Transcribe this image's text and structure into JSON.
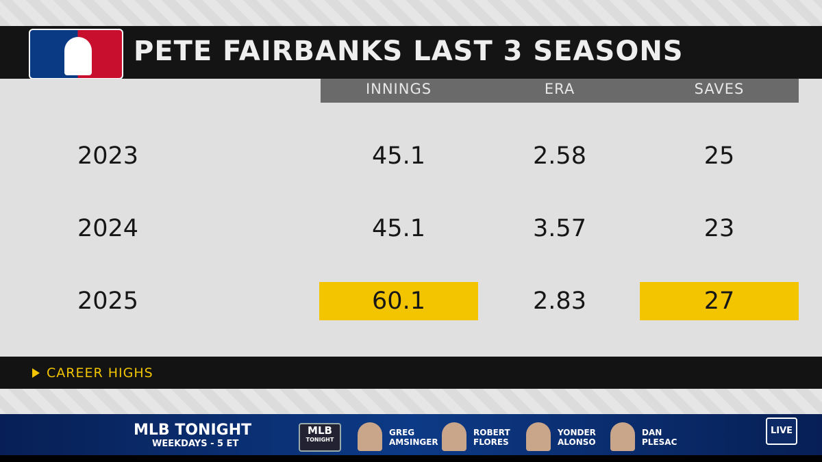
{
  "header": {
    "title": "PETE FAIRBANKS LAST 3 SEASONS"
  },
  "table": {
    "columns": [
      "INNINGS",
      "ERA",
      "SAVES"
    ],
    "rows": [
      [
        "2023",
        "45.1",
        "2.58",
        "25"
      ],
      [
        "2024",
        "45.1",
        "3.57",
        "23"
      ],
      [
        "2025",
        "60.1",
        "2.83",
        "27"
      ]
    ],
    "highlighted": [
      [
        2,
        1
      ],
      [
        2,
        3
      ]
    ],
    "highlight_color": "#f2c500"
  },
  "legend": {
    "label": "CAREER HIGHS"
  },
  "ticker": {
    "show": "MLB TONIGHT",
    "schedule": "WEEKDAYS - 5 ET",
    "logo": [
      "MLB",
      "TONIGHT"
    ],
    "hosts": [
      [
        "GREG",
        "AMSINGER"
      ],
      [
        "ROBERT",
        "FLORES"
      ],
      [
        "YONDER",
        "ALONSO"
      ],
      [
        "DAN",
        "PLESAC"
      ]
    ],
    "badge": "LIVE"
  }
}
